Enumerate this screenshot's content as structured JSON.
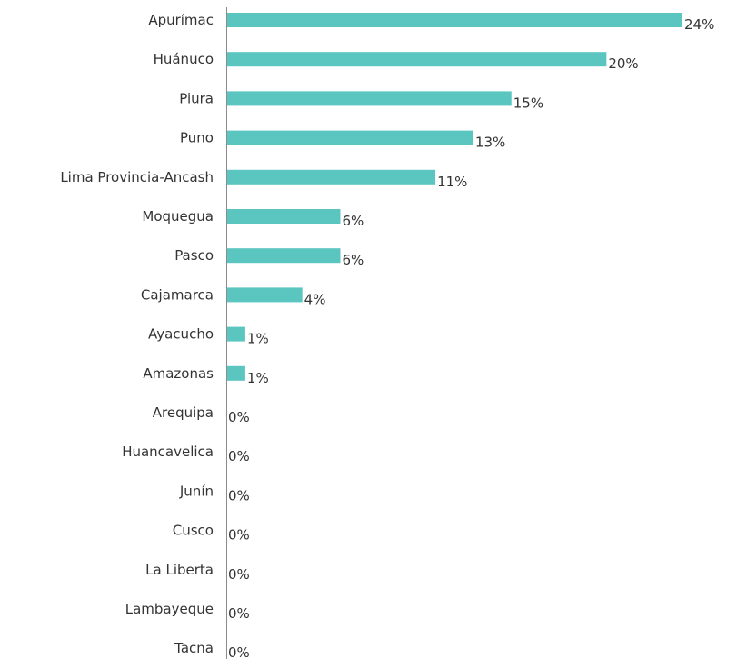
{
  "colors": {
    "bar": "#5bc5c0",
    "axis": "#8c8c8c",
    "text": "#333333"
  },
  "chart_data": {
    "type": "bar",
    "orientation": "horizontal",
    "categories": [
      "Apurímac",
      "Huánuco",
      "Piura",
      "Puno",
      "Lima Provincia-Ancash",
      "Moquegua",
      "Pasco",
      "Cajamarca",
      "Ayacucho",
      "Amazonas",
      "Arequipa",
      "Huancavelica",
      "Junín",
      "Cusco",
      "La Liberta",
      "Lambayeque",
      "Tacna"
    ],
    "values": [
      24,
      20,
      15,
      13,
      11,
      6,
      6,
      4,
      1,
      1,
      0,
      0,
      0,
      0,
      0,
      0,
      0
    ],
    "value_labels": [
      "24%",
      "20%",
      "15%",
      "13%",
      "11%",
      "6%",
      "6%",
      "4%",
      "1%",
      "1%",
      "0%",
      "0%",
      "0%",
      "0%",
      "0%",
      "0%",
      "0%"
    ],
    "unit": "%",
    "xlim": [
      0,
      24
    ],
    "grid": false,
    "title": "",
    "xlabel": "",
    "ylabel": ""
  }
}
